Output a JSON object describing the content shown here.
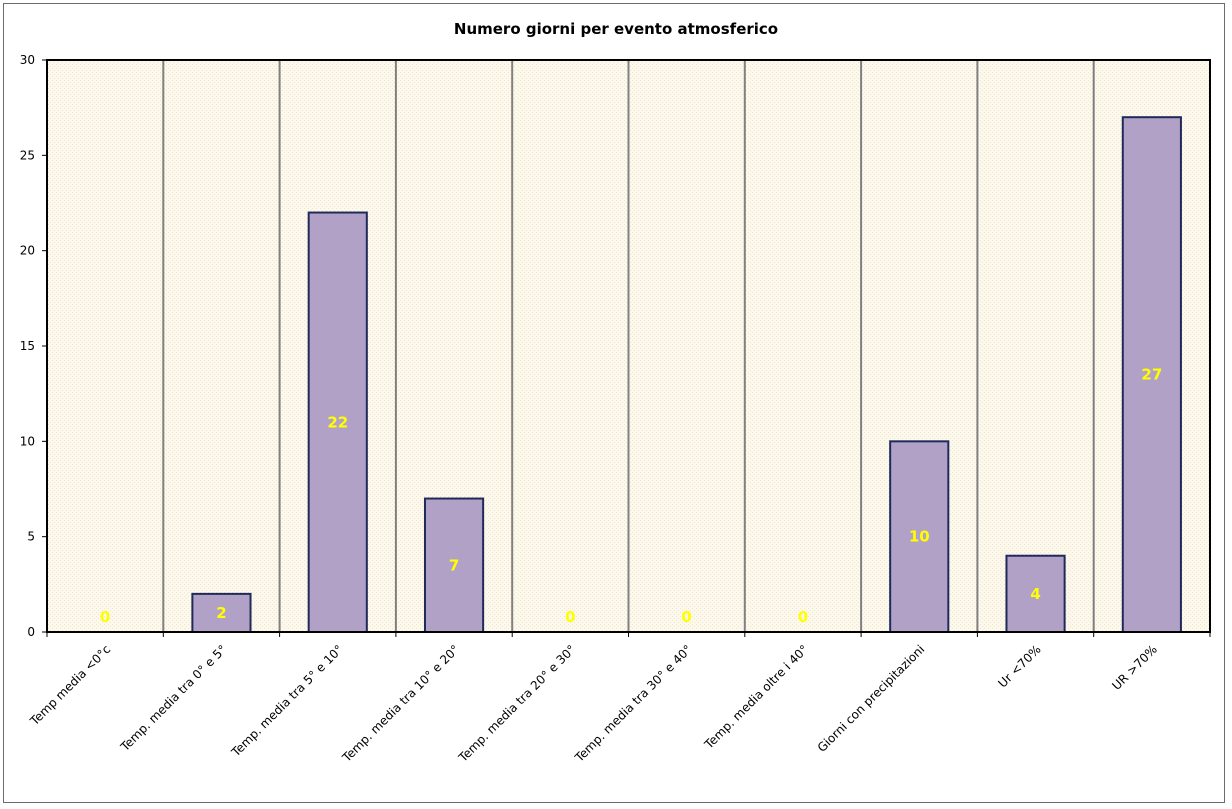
{
  "chart_data": {
    "type": "bar",
    "title": "Numero giorni  per evento atmosferico",
    "categories": [
      "Temp media <0°c",
      "Temp. media tra 0° e 5°",
      "Temp. media tra 5° e 10°",
      "Temp. media tra 10° e 20°",
      "Temp. media tra 20° e 30°",
      "Temp. media tra 30° e 40°",
      "Temp. media oltre i 40°",
      "Giorni con precipitazioni",
      "Ur  <70%",
      "UR >70%"
    ],
    "values": [
      0,
      2,
      22,
      7,
      0,
      0,
      0,
      10,
      4,
      27
    ],
    "xlabel": "",
    "ylabel": "",
    "ylim": [
      0,
      30
    ],
    "yticks": [
      0,
      5,
      10,
      15,
      20,
      25,
      30
    ],
    "grid": "vertical",
    "data_labels": true,
    "colors": {
      "bar": "#b2a1c7",
      "bar_border": "#1f2a5a",
      "plot_bg": "#fdf8ec",
      "data_label": "#ffff00",
      "gridline": "#808080"
    }
  }
}
